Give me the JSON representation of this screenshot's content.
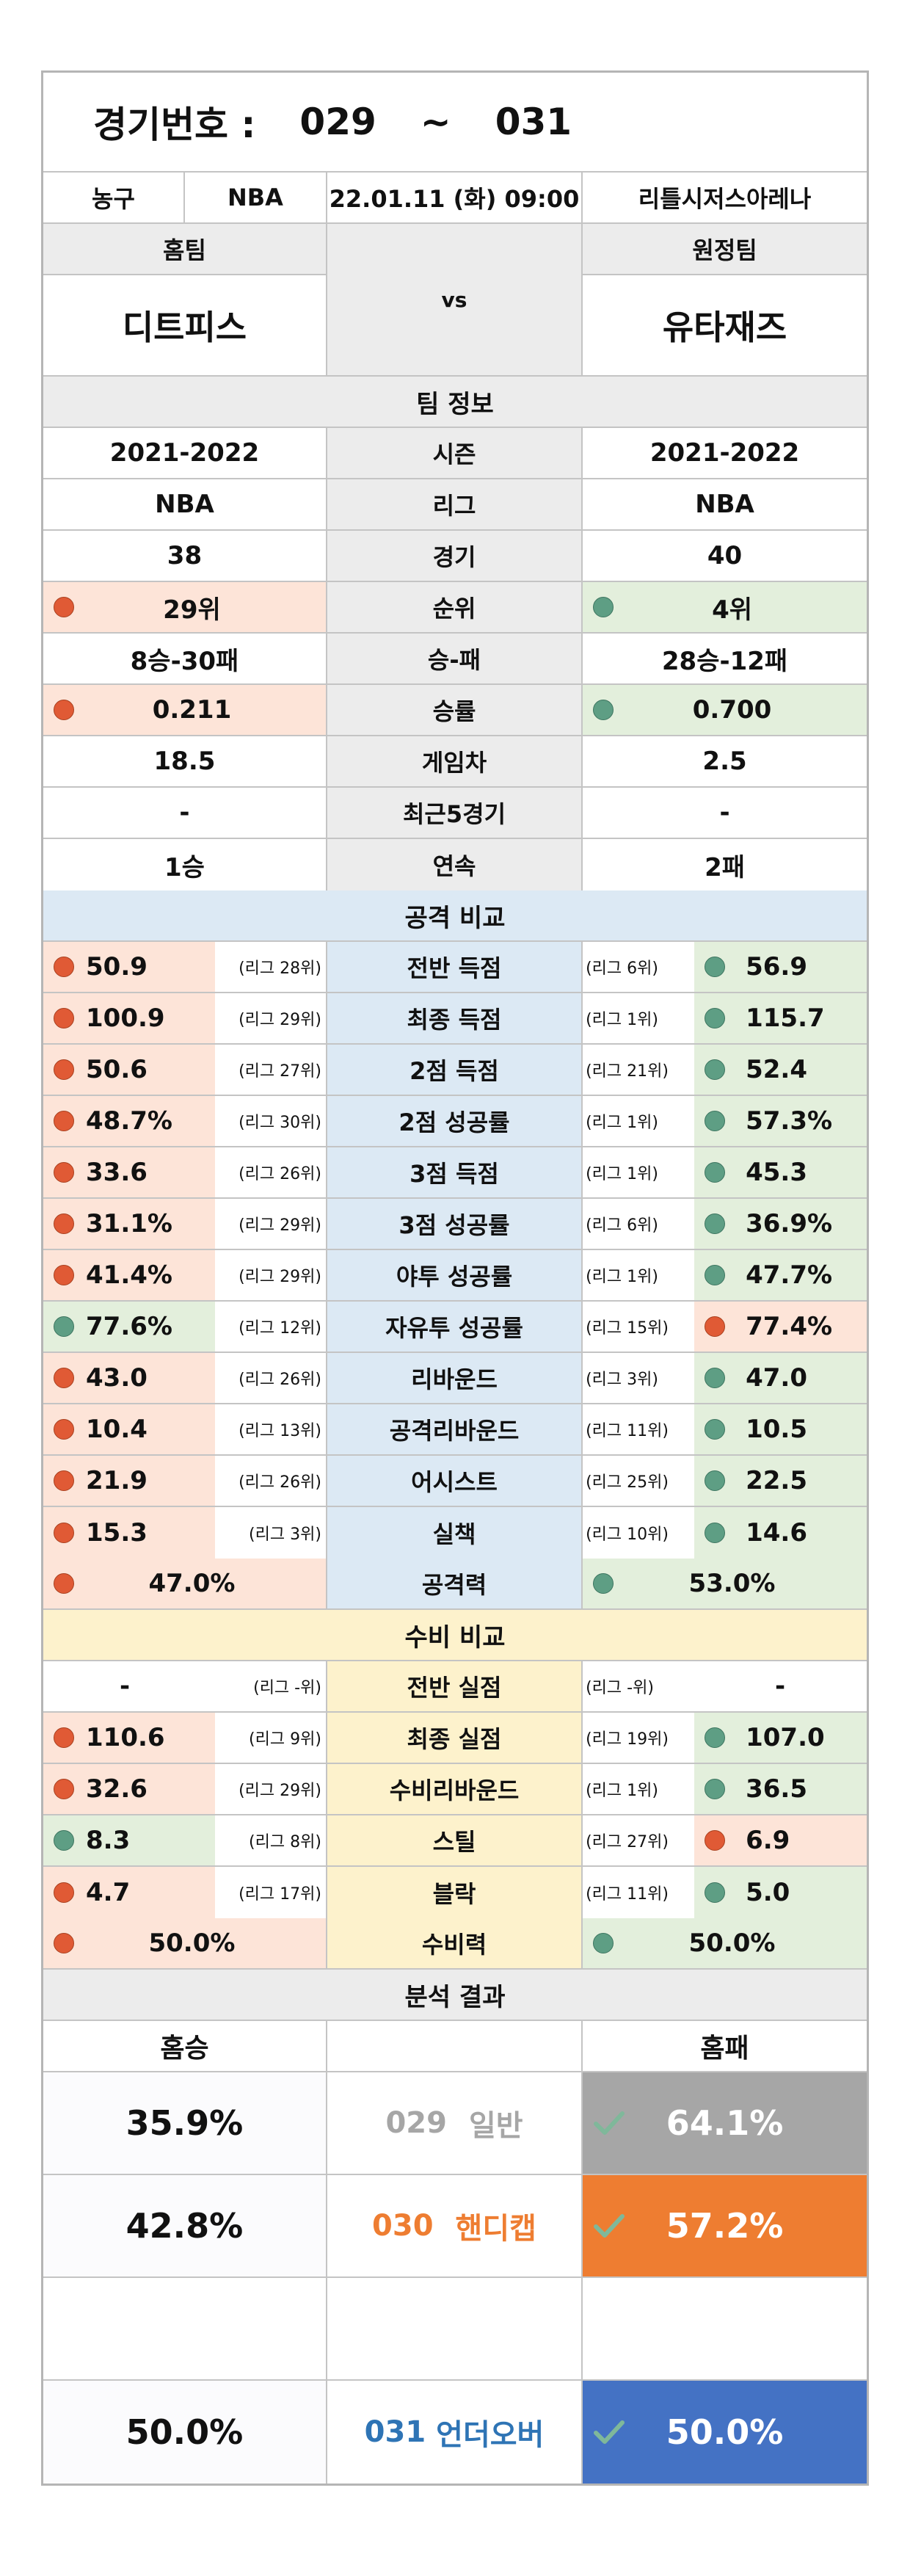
{
  "header": {
    "label": "경기번호 :",
    "from": "029",
    "sep": "~",
    "to": "031"
  },
  "info": {
    "sport": "농구",
    "league": "NBA",
    "datetime": "22.01.11 (화) 09:00",
    "venue": "리틀시저스아레나"
  },
  "teams": {
    "home_label": "홈팀",
    "away_label": "원정팀",
    "vs": "vs",
    "home": "디트피스",
    "away": "유타재즈"
  },
  "team_info": {
    "title": "팀 정보",
    "rows": [
      {
        "label": "시즌",
        "home": "2021-2022",
        "away": "2021-2022",
        "mark": ""
      },
      {
        "label": "리그",
        "home": "NBA",
        "away": "NBA",
        "mark": ""
      },
      {
        "label": "경기",
        "home": "38",
        "away": "40",
        "mark": ""
      },
      {
        "label": "순위",
        "home": "29위",
        "away": "4위",
        "mark": "away"
      },
      {
        "label": "승-패",
        "home": "8승-30패",
        "away": "28승-12패",
        "mark": ""
      },
      {
        "label": "승률",
        "home": "0.211",
        "away": "0.700",
        "mark": "away"
      },
      {
        "label": "게임차",
        "home": "18.5",
        "away": "2.5",
        "mark": ""
      },
      {
        "label": "최근5경기",
        "home": "-",
        "away": "-",
        "mark": ""
      },
      {
        "label": "연속",
        "home": "1승",
        "away": "2패",
        "mark": ""
      }
    ]
  },
  "attack": {
    "title": "공격 비교",
    "rows": [
      {
        "label": "전반 득점",
        "home": "50.9",
        "home_rank": "(리그 28위)",
        "away": "56.9",
        "away_rank": "(리그 6위)",
        "better": "away"
      },
      {
        "label": "최종 득점",
        "home": "100.9",
        "home_rank": "(리그 29위)",
        "away": "115.7",
        "away_rank": "(리그 1위)",
        "better": "away"
      },
      {
        "label": "2점 득점",
        "home": "50.6",
        "home_rank": "(리그 27위)",
        "away": "52.4",
        "away_rank": "(리그 21위)",
        "better": "away"
      },
      {
        "label": "2점 성공률",
        "home": "48.7%",
        "home_rank": "(리그 30위)",
        "away": "57.3%",
        "away_rank": "(리그 1위)",
        "better": "away"
      },
      {
        "label": "3점 득점",
        "home": "33.6",
        "home_rank": "(리그 26위)",
        "away": "45.3",
        "away_rank": "(리그 1위)",
        "better": "away"
      },
      {
        "label": "3점 성공률",
        "home": "31.1%",
        "home_rank": "(리그 29위)",
        "away": "36.9%",
        "away_rank": "(리그 6위)",
        "better": "away"
      },
      {
        "label": "야투 성공률",
        "home": "41.4%",
        "home_rank": "(리그 29위)",
        "away": "47.7%",
        "away_rank": "(리그 1위)",
        "better": "away"
      },
      {
        "label": "자유투 성공률",
        "home": "77.6%",
        "home_rank": "(리그 12위)",
        "away": "77.4%",
        "away_rank": "(리그 15위)",
        "better": "home"
      },
      {
        "label": "리바운드",
        "home": "43.0",
        "home_rank": "(리그 26위)",
        "away": "47.0",
        "away_rank": "(리그 3위)",
        "better": "away"
      },
      {
        "label": "공격리바운드",
        "home": "10.4",
        "home_rank": "(리그 13위)",
        "away": "10.5",
        "away_rank": "(리그 11위)",
        "better": "away"
      },
      {
        "label": "어시스트",
        "home": "21.9",
        "home_rank": "(리그 26위)",
        "away": "22.5",
        "away_rank": "(리그 25위)",
        "better": "away"
      },
      {
        "label": "실책",
        "home": "15.3",
        "home_rank": "(리그 3위)",
        "away": "14.6",
        "away_rank": "(리그 10위)",
        "better": "away"
      }
    ],
    "power_label": "공격력",
    "power_home": "47.0%",
    "power_away": "53.0%"
  },
  "defense": {
    "title": "수비 비교",
    "rows": [
      {
        "label": "전반 실점",
        "home": "-",
        "home_rank": "(리그 -위)",
        "away": "-",
        "away_rank": "(리그 -위)",
        "better": "none"
      },
      {
        "label": "최종 실점",
        "home": "110.6",
        "home_rank": "(리그 9위)",
        "away": "107.0",
        "away_rank": "(리그 19위)",
        "better": "away"
      },
      {
        "label": "수비리바운드",
        "home": "32.6",
        "home_rank": "(리그 29위)",
        "away": "36.5",
        "away_rank": "(리그 1위)",
        "better": "away"
      },
      {
        "label": "스틸",
        "home": "8.3",
        "home_rank": "(리그 8위)",
        "away": "6.9",
        "away_rank": "(리그 27위)",
        "better": "home"
      },
      {
        "label": "블락",
        "home": "4.7",
        "home_rank": "(리그 17위)",
        "away": "5.0",
        "away_rank": "(리그 11위)",
        "better": "away"
      }
    ],
    "power_label": "수비력",
    "power_home": "50.0%",
    "power_away": "50.0%"
  },
  "analysis": {
    "title": "분석 결과",
    "home_label": "홈승",
    "away_label": "홈패",
    "rows": [
      {
        "home": "35.9%",
        "num": "029",
        "type": "일반",
        "away": "64.1%",
        "color": "#a6a6a6",
        "text_color": "#a6a6a6"
      },
      {
        "home": "42.8%",
        "num": "030",
        "type": "핸디캡",
        "away": "57.2%",
        "color": "#ee7d31",
        "text_color": "#ee7d31"
      },
      {
        "home": "50.0%",
        "num": "031",
        "type": "언더오버",
        "away": "50.0%",
        "color": "#4472c4",
        "text_color": "#2e74b5"
      }
    ]
  }
}
